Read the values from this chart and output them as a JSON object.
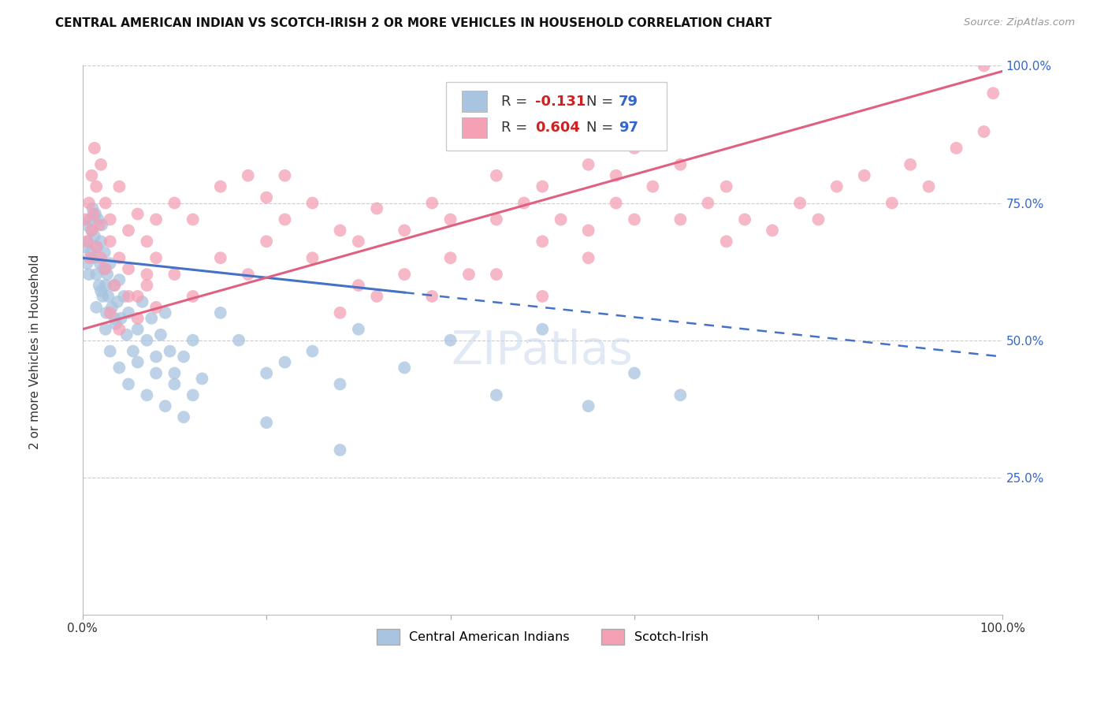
{
  "title": "CENTRAL AMERICAN INDIAN VS SCOTCH-IRISH 2 OR MORE VEHICLES IN HOUSEHOLD CORRELATION CHART",
  "source": "Source: ZipAtlas.com",
  "ylabel": "2 or more Vehicles in Household",
  "xmin": 0.0,
  "xmax": 100.0,
  "ymin": 0.0,
  "ymax": 100.0,
  "ytick_values": [
    25.0,
    50.0,
    75.0,
    100.0
  ],
  "ytick_labels": [
    "25.0%",
    "50.0%",
    "75.0%",
    "100.0%"
  ],
  "blue_label": "Central American Indians",
  "pink_label": "Scotch-Irish",
  "blue_R": -0.131,
  "blue_N": 79,
  "pink_R": 0.604,
  "pink_N": 97,
  "blue_color": "#a8c4e0",
  "pink_color": "#f4a0b5",
  "blue_line_color": "#4472c4",
  "pink_line_color": "#e06080",
  "watermark": "ZIPatlas",
  "background_color": "#ffffff",
  "blue_line_intercept": 65.0,
  "blue_line_slope": -0.18,
  "pink_line_intercept": 52.0,
  "pink_line_slope": 0.47,
  "blue_solid_end": 35.0,
  "blue_points": [
    [
      0.3,
      67
    ],
    [
      0.4,
      71
    ],
    [
      0.5,
      64
    ],
    [
      0.6,
      68
    ],
    [
      0.7,
      62
    ],
    [
      0.8,
      72
    ],
    [
      0.9,
      66
    ],
    [
      1.0,
      70
    ],
    [
      1.1,
      74
    ],
    [
      1.2,
      65
    ],
    [
      1.3,
      69
    ],
    [
      1.4,
      73
    ],
    [
      1.5,
      62
    ],
    [
      1.6,
      67
    ],
    [
      1.7,
      72
    ],
    [
      1.8,
      60
    ],
    [
      1.9,
      64
    ],
    [
      2.0,
      68
    ],
    [
      2.1,
      71
    ],
    [
      2.2,
      58
    ],
    [
      2.3,
      63
    ],
    [
      2.4,
      66
    ],
    [
      2.5,
      60
    ],
    [
      2.6,
      55
    ],
    [
      2.7,
      62
    ],
    [
      2.8,
      58
    ],
    [
      3.0,
      64
    ],
    [
      3.2,
      56
    ],
    [
      3.4,
      60
    ],
    [
      3.6,
      53
    ],
    [
      3.8,
      57
    ],
    [
      4.0,
      61
    ],
    [
      4.2,
      54
    ],
    [
      4.5,
      58
    ],
    [
      4.8,
      51
    ],
    [
      5.0,
      55
    ],
    [
      5.5,
      48
    ],
    [
      6.0,
      52
    ],
    [
      6.5,
      57
    ],
    [
      7.0,
      50
    ],
    [
      7.5,
      54
    ],
    [
      8.0,
      47
    ],
    [
      8.5,
      51
    ],
    [
      9.0,
      55
    ],
    [
      9.5,
      48
    ],
    [
      10.0,
      44
    ],
    [
      11.0,
      47
    ],
    [
      12.0,
      50
    ],
    [
      13.0,
      43
    ],
    [
      1.5,
      56
    ],
    [
      2.0,
      59
    ],
    [
      2.5,
      52
    ],
    [
      3.0,
      48
    ],
    [
      3.5,
      54
    ],
    [
      4.0,
      45
    ],
    [
      5.0,
      42
    ],
    [
      6.0,
      46
    ],
    [
      7.0,
      40
    ],
    [
      8.0,
      44
    ],
    [
      9.0,
      38
    ],
    [
      10.0,
      42
    ],
    [
      11.0,
      36
    ],
    [
      12.0,
      40
    ],
    [
      15.0,
      55
    ],
    [
      17.0,
      50
    ],
    [
      20.0,
      44
    ],
    [
      22.0,
      46
    ],
    [
      25.0,
      48
    ],
    [
      28.0,
      42
    ],
    [
      30.0,
      52
    ],
    [
      35.0,
      45
    ],
    [
      40.0,
      50
    ],
    [
      45.0,
      40
    ],
    [
      50.0,
      52
    ],
    [
      55.0,
      38
    ],
    [
      60.0,
      44
    ],
    [
      65.0,
      40
    ],
    [
      20.0,
      35
    ],
    [
      28.0,
      30
    ]
  ],
  "pink_points": [
    [
      0.3,
      72
    ],
    [
      0.5,
      68
    ],
    [
      0.7,
      75
    ],
    [
      0.8,
      65
    ],
    [
      1.0,
      70
    ],
    [
      1.2,
      73
    ],
    [
      1.5,
      67
    ],
    [
      1.8,
      71
    ],
    [
      2.0,
      65
    ],
    [
      2.5,
      63
    ],
    [
      3.0,
      68
    ],
    [
      3.5,
      60
    ],
    [
      4.0,
      65
    ],
    [
      5.0,
      63
    ],
    [
      6.0,
      58
    ],
    [
      7.0,
      62
    ],
    [
      8.0,
      65
    ],
    [
      1.0,
      80
    ],
    [
      1.3,
      85
    ],
    [
      1.5,
      78
    ],
    [
      2.0,
      82
    ],
    [
      2.5,
      75
    ],
    [
      3.0,
      72
    ],
    [
      4.0,
      78
    ],
    [
      5.0,
      70
    ],
    [
      6.0,
      73
    ],
    [
      7.0,
      68
    ],
    [
      8.0,
      72
    ],
    [
      3.0,
      55
    ],
    [
      4.0,
      52
    ],
    [
      5.0,
      58
    ],
    [
      6.0,
      54
    ],
    [
      7.0,
      60
    ],
    [
      8.0,
      56
    ],
    [
      10.0,
      62
    ],
    [
      12.0,
      58
    ],
    [
      15.0,
      65
    ],
    [
      18.0,
      62
    ],
    [
      20.0,
      68
    ],
    [
      22.0,
      72
    ],
    [
      25.0,
      65
    ],
    [
      28.0,
      70
    ],
    [
      30.0,
      68
    ],
    [
      32.0,
      74
    ],
    [
      35.0,
      70
    ],
    [
      38.0,
      75
    ],
    [
      40.0,
      72
    ],
    [
      10.0,
      75
    ],
    [
      12.0,
      72
    ],
    [
      15.0,
      78
    ],
    [
      18.0,
      80
    ],
    [
      20.0,
      76
    ],
    [
      22.0,
      80
    ],
    [
      25.0,
      75
    ],
    [
      28.0,
      55
    ],
    [
      30.0,
      60
    ],
    [
      32.0,
      58
    ],
    [
      35.0,
      62
    ],
    [
      38.0,
      58
    ],
    [
      40.0,
      65
    ],
    [
      42.0,
      62
    ],
    [
      45.0,
      72
    ],
    [
      48.0,
      75
    ],
    [
      50.0,
      68
    ],
    [
      52.0,
      72
    ],
    [
      55.0,
      70
    ],
    [
      58.0,
      75
    ],
    [
      60.0,
      72
    ],
    [
      45.0,
      80
    ],
    [
      50.0,
      78
    ],
    [
      55.0,
      82
    ],
    [
      58.0,
      80
    ],
    [
      60.0,
      85
    ],
    [
      62.0,
      78
    ],
    [
      65.0,
      82
    ],
    [
      65.0,
      72
    ],
    [
      68.0,
      75
    ],
    [
      70.0,
      78
    ],
    [
      70.0,
      68
    ],
    [
      72.0,
      72
    ],
    [
      75.0,
      70
    ],
    [
      78.0,
      75
    ],
    [
      80.0,
      72
    ],
    [
      82.0,
      78
    ],
    [
      85.0,
      80
    ],
    [
      88.0,
      75
    ],
    [
      90.0,
      82
    ],
    [
      92.0,
      78
    ],
    [
      95.0,
      85
    ],
    [
      98.0,
      88
    ],
    [
      98.0,
      100
    ],
    [
      99.0,
      95
    ],
    [
      45.0,
      62
    ],
    [
      50.0,
      58
    ],
    [
      55.0,
      65
    ]
  ]
}
